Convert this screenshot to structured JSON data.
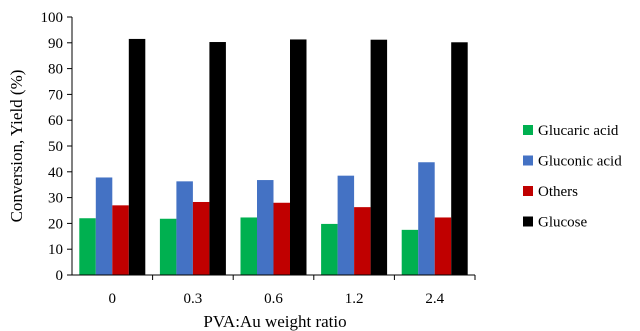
{
  "chart_data": {
    "type": "bar",
    "title": "",
    "xlabel": "PVA:Au weight ratio",
    "ylabel": "Conversion, Yield (%)",
    "ylim": [
      0,
      100
    ],
    "yticks": [
      0,
      10,
      20,
      30,
      40,
      50,
      60,
      70,
      80,
      90,
      100
    ],
    "grid": false,
    "legend_position": "right",
    "categories": [
      "0",
      "0.3",
      "0.6",
      "1.2",
      "2.4"
    ],
    "series": [
      {
        "name": "Glucaric acid",
        "color": "#00b050",
        "values": [
          22,
          21.8,
          22.3,
          19.8,
          17.5
        ]
      },
      {
        "name": "Gluconic acid",
        "color": "#4472c4",
        "values": [
          37.8,
          36.3,
          36.8,
          38.5,
          43.7
        ]
      },
      {
        "name": "Others",
        "color": "#c00000",
        "values": [
          27,
          28.3,
          28,
          26.3,
          22.3
        ]
      },
      {
        "name": "Glucose",
        "color": "#000000",
        "values": [
          91.5,
          90.3,
          91.3,
          91.2,
          90.2
        ]
      }
    ]
  }
}
